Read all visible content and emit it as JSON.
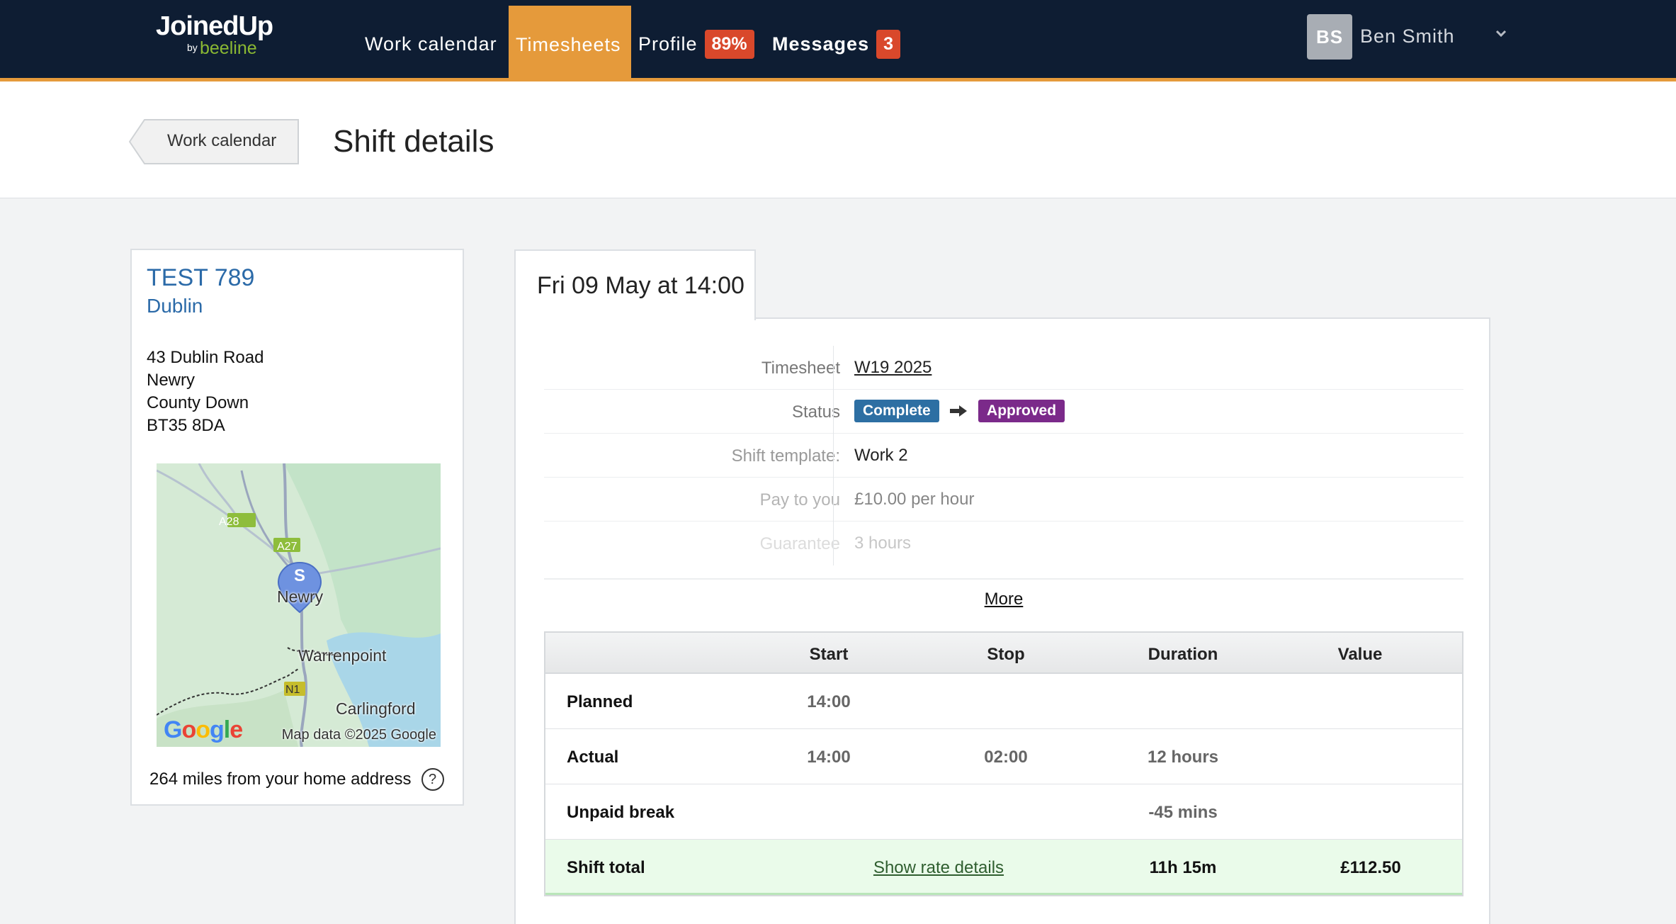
{
  "nav": {
    "logo_main": "JoinedUp",
    "logo_by": "by",
    "logo_sub": "beeline",
    "items": [
      {
        "label": "Work calendar"
      },
      {
        "label": "Timesheets",
        "active": true
      },
      {
        "label": "Profile",
        "badge": "89%"
      },
      {
        "label": "Messages",
        "badge": "3"
      }
    ],
    "user_initials": "BS",
    "user_name": "Ben Smith",
    "accent_color": "#e59a3b",
    "bar_color": "#0e1d33"
  },
  "header": {
    "back_label": "Work calendar",
    "title": "Shift details"
  },
  "location": {
    "title": "TEST 789",
    "city": "Dublin",
    "address_lines": [
      "43 Dublin Road",
      "Newry",
      "County Down",
      "BT35 8DA"
    ],
    "map": {
      "marker_letter": "S",
      "labels": [
        "Newry",
        "Warrenpoint",
        "Carlingford"
      ],
      "road_labels": [
        "A28",
        "A27",
        "N1"
      ],
      "attribution": "Map data ©2025 Google",
      "brand": "Google"
    },
    "distance": "264 miles from your home address",
    "help_icon": "question-circle-icon"
  },
  "shift": {
    "tab_label": "Fri 09 May at 14:00",
    "details": [
      {
        "label": "Timesheet",
        "value": "W19 2025"
      },
      {
        "label": "Status",
        "from": "Complete",
        "to": "Approved"
      },
      {
        "label": "Shift template:",
        "value": "Work 2"
      },
      {
        "label": "Pay to you",
        "value": "£10.00 per hour"
      },
      {
        "label": "Guarantee",
        "value": "3 hours"
      }
    ],
    "more_label": "More",
    "table": {
      "columns": [
        "Start",
        "Stop",
        "Duration",
        "Value"
      ],
      "rows": [
        {
          "label": "Planned",
          "start": "14:00",
          "stop": "",
          "duration": "",
          "value": ""
        },
        {
          "label": "Actual",
          "start": "14:00",
          "stop": "02:00",
          "duration": "12 hours",
          "value": ""
        },
        {
          "label": "Unpaid break",
          "start": "",
          "stop": "",
          "duration": "-45 mins",
          "value": ""
        }
      ],
      "total": {
        "label": "Shift total",
        "rate_link": "Show rate details",
        "duration": "11h 15m",
        "value": "£112.50"
      }
    }
  }
}
